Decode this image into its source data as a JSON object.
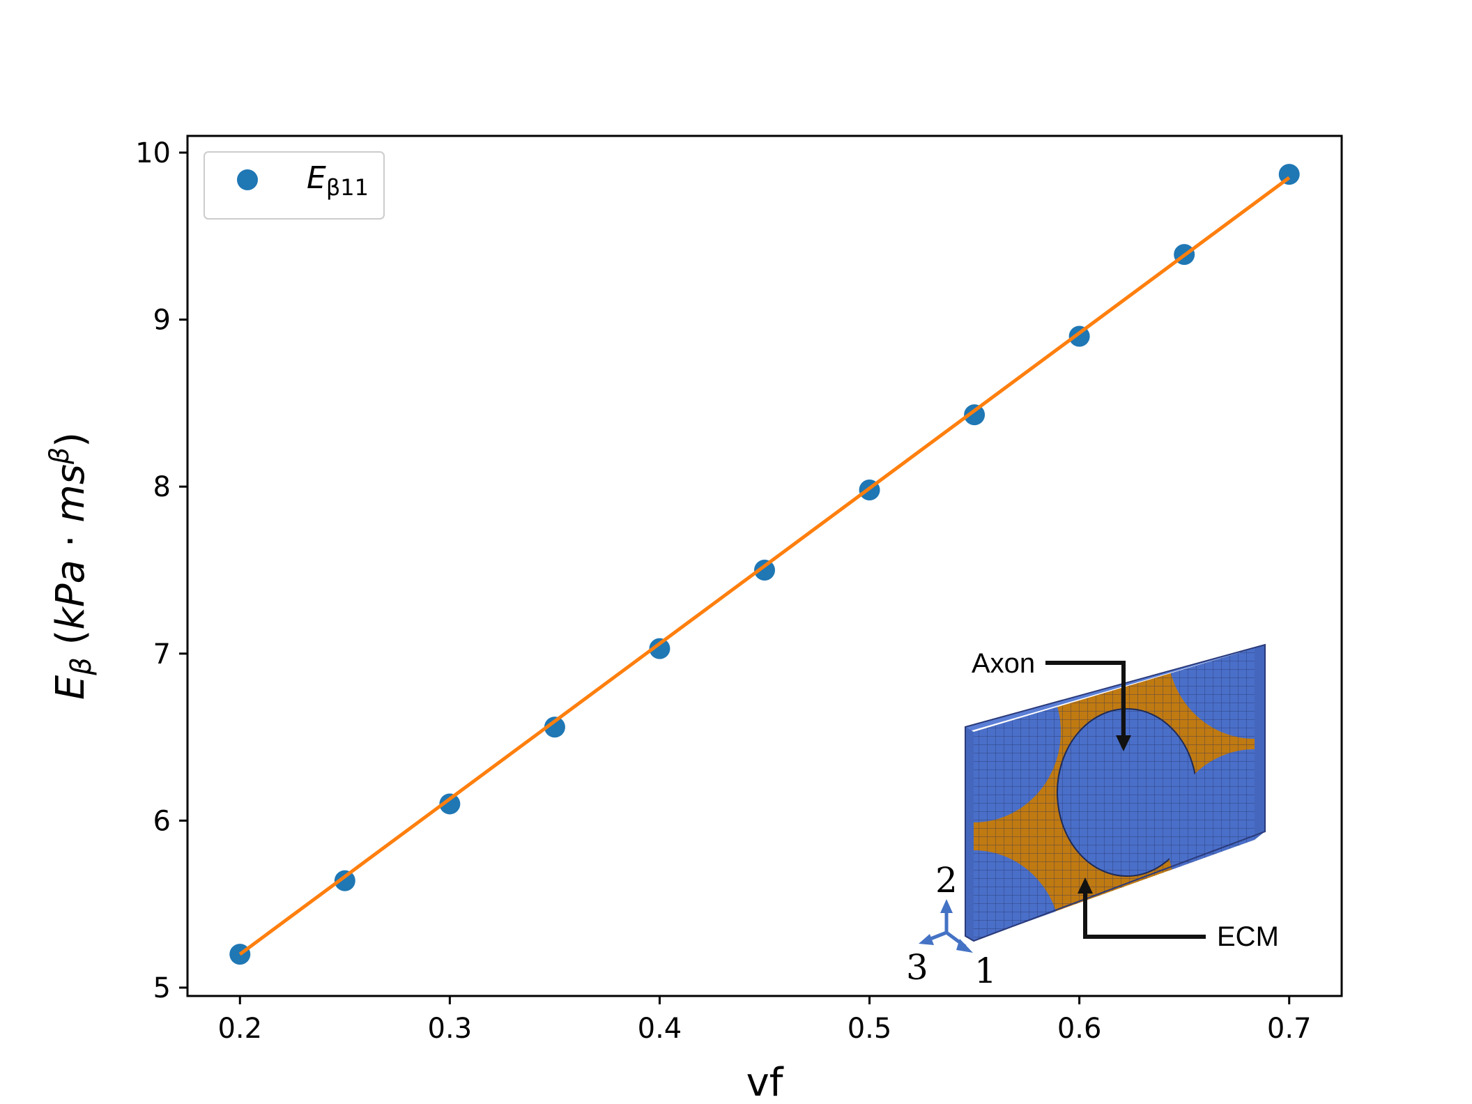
{
  "chart_data": {
    "type": "scatter",
    "title": "",
    "xlabel": "vf",
    "ylabel": "E_β (kPa · ms^β)",
    "xlim": [
      0.175,
      0.725
    ],
    "ylim": [
      4.95,
      10.1
    ],
    "x_ticks": [
      "0.2",
      "0.3",
      "0.4",
      "0.5",
      "0.6",
      "0.7"
    ],
    "y_ticks": [
      "5",
      "6",
      "7",
      "8",
      "9",
      "10"
    ],
    "grid": false,
    "legend": {
      "position": "top-left",
      "entries": [
        {
          "label": "E_β11",
          "marker": "circle",
          "color": "#1f77b4"
        }
      ]
    },
    "series": [
      {
        "name": "E_β11",
        "kind": "scatter",
        "color": "#1f77b4",
        "x": [
          0.2,
          0.25,
          0.3,
          0.35,
          0.4,
          0.45,
          0.5,
          0.55,
          0.6,
          0.65,
          0.7
        ],
        "y": [
          5.2,
          5.64,
          6.1,
          6.56,
          7.03,
          7.5,
          7.98,
          8.43,
          8.9,
          9.39,
          9.87
        ]
      },
      {
        "kind": "line",
        "color": "#ff7f0e",
        "x": [
          0.2,
          0.7
        ],
        "y": [
          5.2,
          9.85
        ]
      }
    ]
  },
  "inset": {
    "axon_label": "Axon",
    "ecm_label": "ECM",
    "axis_labels": [
      "1",
      "2",
      "3"
    ],
    "colors": {
      "axon": "#4a6fc9",
      "ecm": "#c07a12",
      "arrow": "#4472c4"
    }
  }
}
